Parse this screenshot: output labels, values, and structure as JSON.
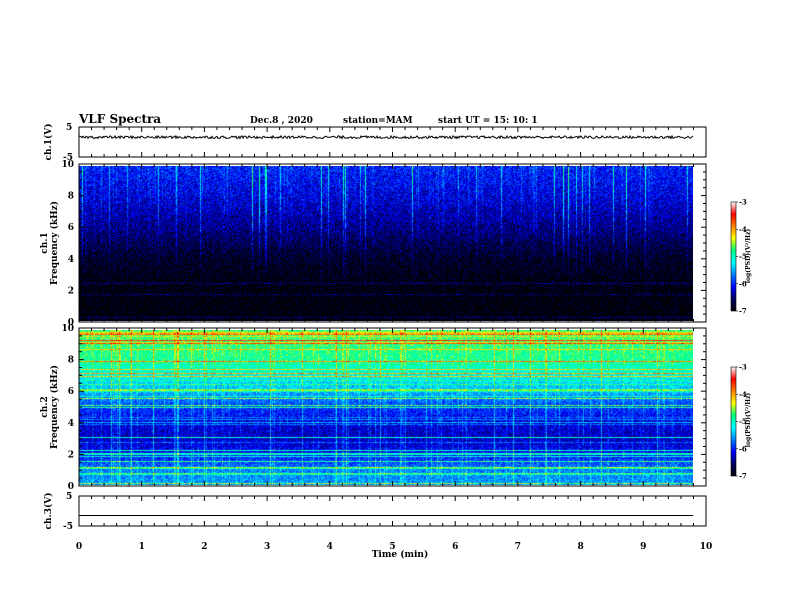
{
  "header": {
    "title": "VLF Spectra",
    "date": "Dec.8 , 2020",
    "station": "station=MAM",
    "start": "start UT = 15: 10: 1"
  },
  "chart_data": [
    {
      "type": "line",
      "panel": "ch1-waveform",
      "ylabel": "ch.1(V)",
      "ylim": [
        -5,
        5
      ],
      "yticks": [
        "5",
        "-5"
      ],
      "xlim": [
        0,
        10
      ],
      "series": [
        {
          "values_description_level": 1.6
        }
      ]
    },
    {
      "type": "heatmap",
      "panel": "ch1-spectrogram",
      "ylabel": "ch.1\nFrequency (kHz)",
      "ylabel_line1": "ch.1",
      "ylabel_line2": "Frequency (kHz)",
      "ylim": [
        0,
        10
      ],
      "yticks": [
        "0",
        "2",
        "4",
        "6",
        "8",
        "10"
      ],
      "xlim": [
        0,
        9.85
      ],
      "colorbar": {
        "label": "log(PSD)(V²/Hz)",
        "range": [
          -7,
          -3
        ],
        "ticks": [
          "-3",
          "-4",
          "-5",
          "-6",
          "-7"
        ]
      },
      "frequency_profile_logpsd": [
        [
          0,
          -7.0
        ],
        [
          2,
          -7.0
        ],
        [
          4,
          -6.8
        ],
        [
          5,
          -6.6
        ],
        [
          6,
          -6.4
        ],
        [
          8,
          -6.1
        ],
        [
          10,
          -5.9
        ]
      ]
    },
    {
      "type": "heatmap",
      "panel": "ch2-spectrogram",
      "ylabel_line1": "ch.2",
      "ylabel_line2": "Frequency (kHz)",
      "ylim": [
        0,
        10
      ],
      "yticks": [
        "0",
        "2",
        "4",
        "6",
        "8",
        "10"
      ],
      "xlim": [
        0,
        9.85
      ],
      "colorbar": {
        "label": "log(PSD)(V²/Hz)",
        "range": [
          -7,
          -3
        ],
        "ticks": [
          "-3",
          "-4",
          "-5",
          "-6",
          "-7"
        ]
      },
      "frequency_profile_logpsd": [
        [
          0,
          -5.4
        ],
        [
          1,
          -5.5
        ],
        [
          2,
          -6.0
        ],
        [
          3,
          -6.2
        ],
        [
          4,
          -6.1
        ],
        [
          5,
          -5.8
        ],
        [
          6,
          -5.3
        ],
        [
          7,
          -5.0
        ],
        [
          8,
          -4.6
        ],
        [
          10,
          -4.4
        ]
      ]
    },
    {
      "type": "line",
      "panel": "ch3-waveform",
      "ylabel": "ch.3(V)",
      "ylim": [
        -5,
        5
      ],
      "yticks": [
        "5",
        "-5"
      ],
      "xlim": [
        0,
        10
      ],
      "xlabel": "Time (min)",
      "xticks": [
        "0",
        "1",
        "2",
        "3",
        "4",
        "5",
        "6",
        "7",
        "8",
        "9",
        "10"
      ],
      "series": [
        {
          "values_description_level": -1.5
        }
      ]
    }
  ],
  "colors": {
    "colormap": [
      "#000000",
      "#000060",
      "#0000ff",
      "#0080ff",
      "#00ffff",
      "#00ff80",
      "#ffff00",
      "#ff8000",
      "#ff0000",
      "#ffffff"
    ]
  }
}
